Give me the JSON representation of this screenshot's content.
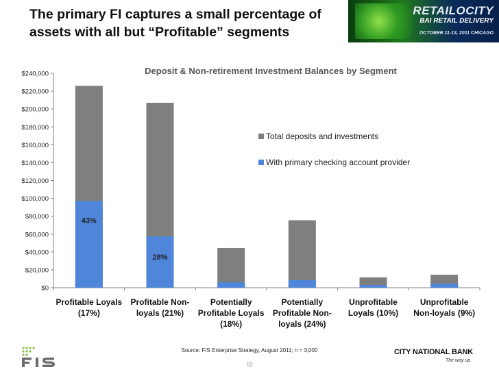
{
  "slide": {
    "title_line1": "The primary FI captures a small percentage of",
    "title_line2": "assets with all but “Profitable” segments",
    "banner_logo": "RETAILOCITY",
    "banner_sub": "BAI RETAIL DELIVERY",
    "banner_date": "OCTOBER 11-13, 2011 CHICAGO",
    "source": "Source: FIS Enterprise Strategy, August 2011; n = 3,000",
    "page_number": "10",
    "bank_name": "CITY NATIONAL BANK",
    "bank_tagline": "The way up."
  },
  "colors": {
    "total": "#7f7f7f",
    "primary": "#4f86d9"
  },
  "chart_data": {
    "type": "bar",
    "stacking": "overlay",
    "title": "Deposit & Non-retirement Investment Balances by Segment",
    "categories": [
      [
        "Profitable Loyals",
        "(17%)"
      ],
      [
        "Profitable Non-",
        "loyals (21%)"
      ],
      [
        "Potentially",
        "Profitable Loyals",
        "(18%)"
      ],
      [
        "Potentially",
        "Profitable Non-",
        "loyals (24%)"
      ],
      [
        "Unprofitable",
        "Loyals (10%)"
      ],
      [
        "Unprofitable",
        "Non-loyals (9%)"
      ]
    ],
    "series": [
      {
        "name": "Total deposits and investments",
        "values": [
          226000,
          207000,
          44500,
          75500,
          11500,
          14500
        ]
      },
      {
        "name": "With primary checking account provider",
        "values": [
          97000,
          57500,
          6000,
          8500,
          3000,
          4500
        ]
      }
    ],
    "data_labels": [
      "43%",
      "28%",
      "",
      "",
      "",
      ""
    ],
    "ylim": [
      0,
      240000
    ],
    "yticks": [
      "$0",
      "$20,000",
      "$40,000",
      "$60,000",
      "$80,000",
      "$100,000",
      "$120,000",
      "$140,000",
      "$160,000",
      "$180,000",
      "$200,000",
      "$220,000",
      "$240,000"
    ],
    "legend_position": "right",
    "grid": false
  }
}
